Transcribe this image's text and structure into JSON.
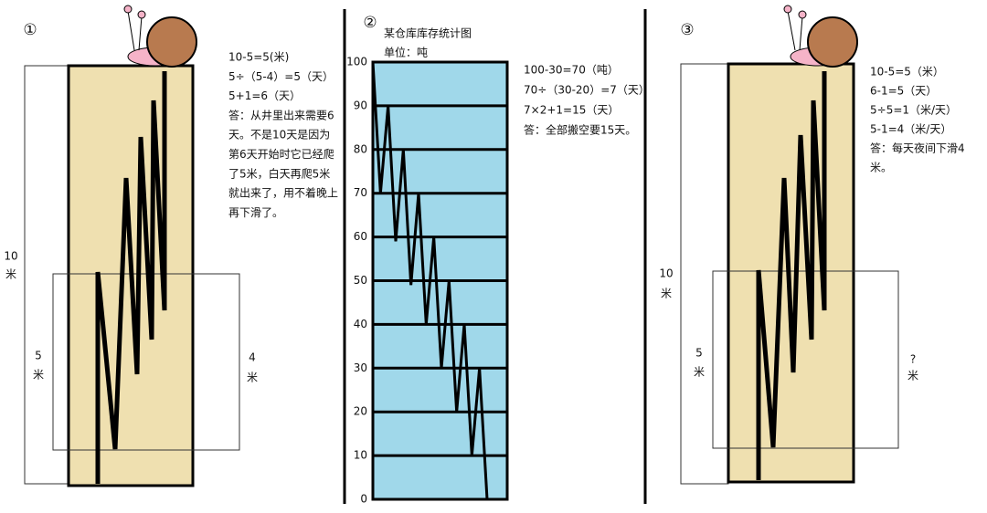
{
  "panels": [
    {
      "number": "①",
      "labels": {
        "total": "10",
        "total_unit": "米",
        "left": "5",
        "left_unit": "米",
        "right": "4",
        "right_unit": "米"
      },
      "lines": [
        "10-5=5(米)",
        "5÷（5-4）=5（天）",
        "5+1=6（天）",
        "答：从井里出来需要6",
        "天。不是10天是因为",
        "第6天开始时它已经爬",
        "了5米，白天再爬5米",
        "就出来了，用不着晚上",
        "再下滑了。"
      ]
    },
    {
      "number": "②",
      "chart": {
        "title": "某仓库库存统计图",
        "unit": "单位：吨",
        "ylim": [
          0,
          100
        ],
        "yticks": [
          0,
          10,
          20,
          30,
          40,
          50,
          60,
          70,
          80,
          90,
          100
        ],
        "values": [
          100,
          70,
          90,
          59,
          80,
          49,
          70,
          40,
          60,
          30,
          50,
          20,
          40,
          10,
          30,
          0
        ]
      },
      "lines": [
        "100-30=70（吨）",
        "70÷（30-20）=7（天）",
        "7×2+1=15（天）",
        "答：全部搬空要15天。"
      ]
    },
    {
      "number": "③",
      "labels": {
        "total": "10",
        "total_unit": "米",
        "left": "5",
        "left_unit": "米",
        "right": "?",
        "right_unit": "米"
      },
      "lines": [
        "10-5=5（米）",
        "6-1=5（天）",
        "5÷5=1（米/天）",
        "5-1=4（米/天）",
        "答：每天夜间下滑4",
        "米。"
      ]
    }
  ]
}
